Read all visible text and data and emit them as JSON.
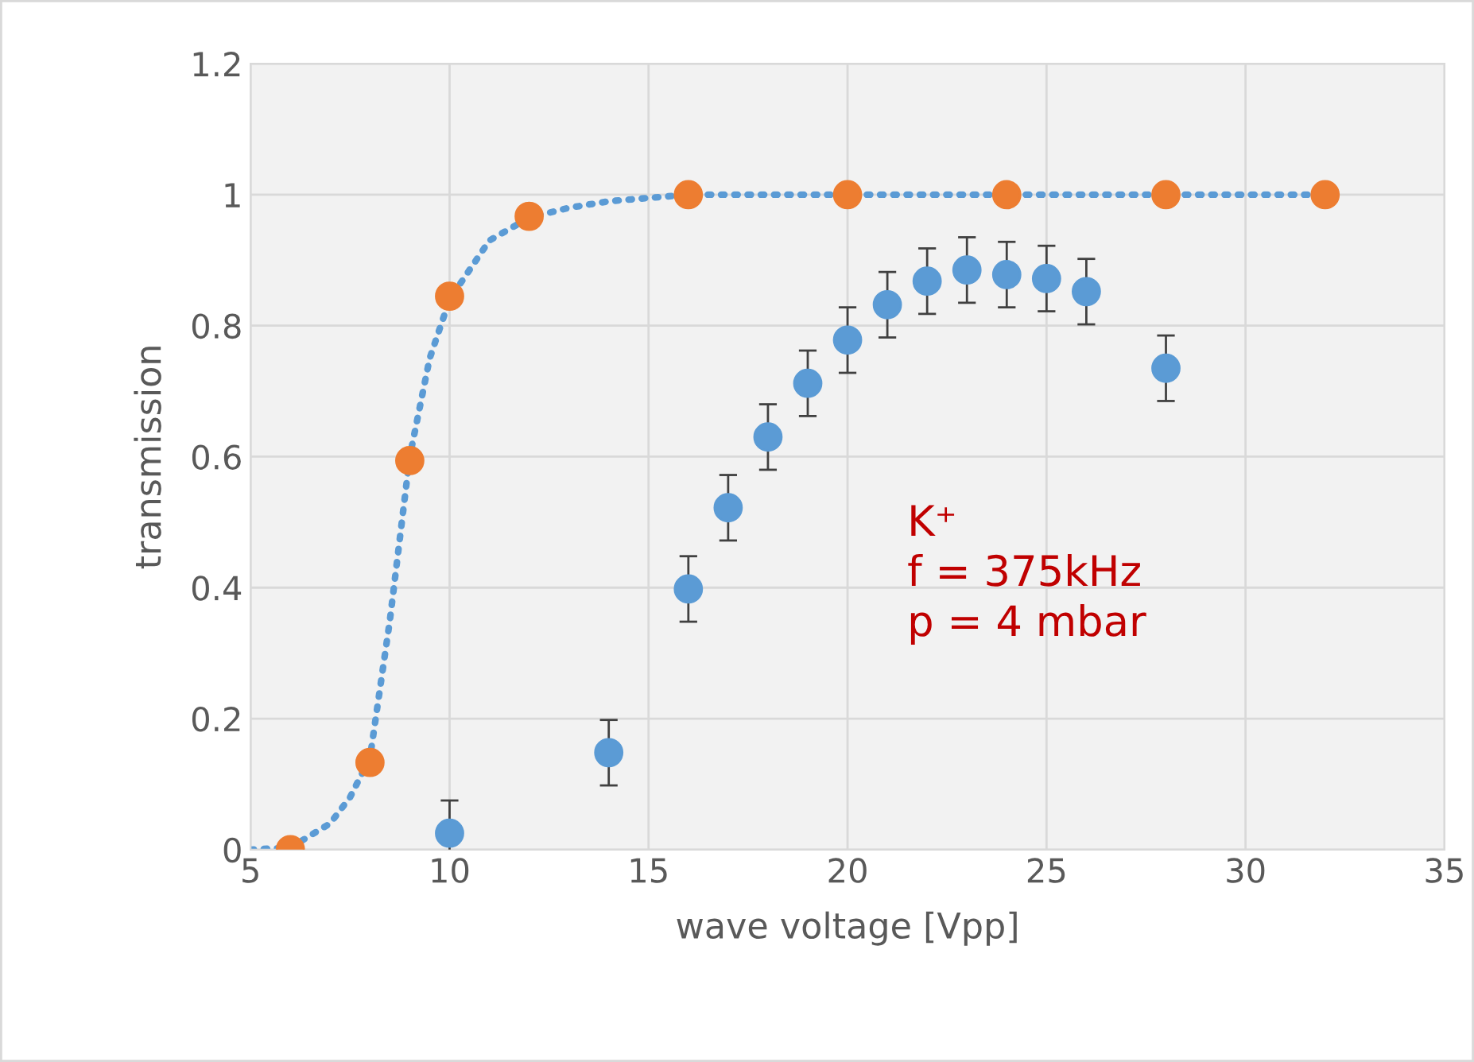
{
  "chart_data": {
    "type": "scatter",
    "xlabel": "wave voltage [Vpp]",
    "ylabel": "transmission",
    "xlim": [
      5,
      35
    ],
    "xticks": [
      5,
      10,
      15,
      20,
      25,
      30,
      35
    ],
    "ylim": [
      0,
      1.2
    ],
    "yticks": [
      0,
      {
        "value": 0.2,
        "label": "0.2"
      },
      {
        "value": 0.4,
        "label": "0.4"
      },
      {
        "value": 0.6,
        "label": "0.6"
      },
      {
        "value": 0.8,
        "label": "0.8"
      },
      1,
      {
        "value": 1.2,
        "label": "1.2"
      }
    ],
    "grid": true,
    "marker": "circle",
    "series": [
      {
        "type": "line",
        "line_style": "dotted",
        "marker": "none",
        "color": "#5b9bd5",
        "x": [
          5,
          6,
          7,
          7.5,
          8,
          8.5,
          9,
          9.5,
          10,
          11,
          12,
          13,
          14,
          16,
          20,
          24,
          28,
          32
        ],
        "values": [
          0,
          0.003,
          0.04,
          0.08,
          0.14,
          0.35,
          0.6,
          0.75,
          0.84,
          0.93,
          0.965,
          0.98,
          0.99,
          1,
          1,
          1,
          1,
          1
        ]
      },
      {
        "color": "#5b9bd5",
        "x": [
          10,
          14,
          16,
          17,
          18,
          19,
          20,
          21,
          22,
          23,
          24,
          25,
          26,
          28
        ],
        "values": [
          0.025,
          0.148,
          0.398,
          0.522,
          0.63,
          0.712,
          0.778,
          0.832,
          0.868,
          0.885,
          0.878,
          0.872,
          0.852,
          0.735
        ],
        "errors": [
          0.05,
          0.05,
          0.05,
          0.05,
          0.05,
          0.05,
          0.05,
          0.05,
          0.05,
          0.05,
          0.05,
          0.05,
          0.05,
          0.05
        ]
      },
      {
        "color": "#ed7d31",
        "x": [
          6,
          8,
          9,
          10,
          12,
          16,
          20,
          24,
          28,
          32
        ],
        "values": [
          0,
          0.133,
          0.594,
          0.845,
          0.967,
          1,
          1,
          1,
          1,
          1
        ]
      }
    ],
    "annotations": [
      "K⁺\nf = 375kHz\np = 4 mbar"
    ]
  }
}
